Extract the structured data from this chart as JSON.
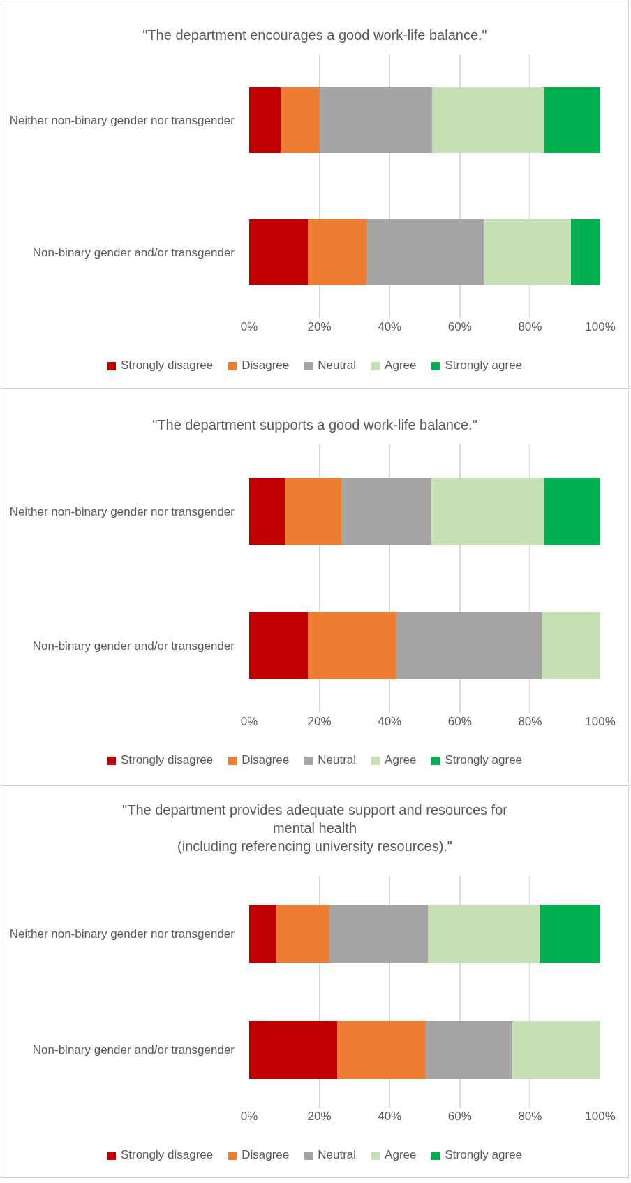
{
  "chart_data": [
    {
      "type": "bar",
      "orientation": "horizontal",
      "stacked": true,
      "title": "\"The department encourages a good work-life balance.\"",
      "categories": [
        "Neither non-binary gender nor transgender",
        "Non-binary gender and/or transgender"
      ],
      "series": [
        {
          "name": "Strongly disagree",
          "color": "#c00000",
          "values": [
            9,
            16.7
          ]
        },
        {
          "name": "Disagree",
          "color": "#ed7d31",
          "values": [
            11,
            16.7
          ]
        },
        {
          "name": "Neutral",
          "color": "#a5a5a5",
          "values": [
            32,
            33.3
          ]
        },
        {
          "name": "Agree",
          "color": "#c5e0b4",
          "values": [
            32,
            25
          ]
        },
        {
          "name": "Strongly agree",
          "color": "#00b050",
          "values": [
            16,
            8.3
          ]
        }
      ],
      "xlim": [
        0,
        100
      ],
      "xticks": [
        {
          "value": 0,
          "label": "0%"
        },
        {
          "value": 20,
          "label": "20%"
        },
        {
          "value": 40,
          "label": "40%"
        },
        {
          "value": 60,
          "label": "60%"
        },
        {
          "value": 80,
          "label": "80%"
        },
        {
          "value": 100,
          "label": "100%"
        }
      ],
      "grid": "x",
      "legend": "bottom"
    },
    {
      "type": "bar",
      "orientation": "horizontal",
      "stacked": true,
      "title": "\"The department supports a good work-life balance.\"",
      "categories": [
        "Neither non-binary gender nor transgender",
        "Non-binary gender and/or transgender"
      ],
      "series": [
        {
          "name": "Strongly disagree",
          "color": "#c00000",
          "values": [
            10.2,
            16.7
          ]
        },
        {
          "name": "Disagree",
          "color": "#ed7d31",
          "values": [
            16,
            25
          ]
        },
        {
          "name": "Neutral",
          "color": "#a5a5a5",
          "values": [
            25.7,
            41.6
          ]
        },
        {
          "name": "Agree",
          "color": "#c5e0b4",
          "values": [
            32.1,
            16.7
          ]
        },
        {
          "name": "Strongly agree",
          "color": "#00b050",
          "values": [
            16,
            0
          ]
        }
      ],
      "xlim": [
        0,
        100
      ],
      "xticks": [
        {
          "value": 0,
          "label": "0%"
        },
        {
          "value": 20,
          "label": "20%"
        },
        {
          "value": 40,
          "label": "40%"
        },
        {
          "value": 60,
          "label": "60%"
        },
        {
          "value": 80,
          "label": "80%"
        },
        {
          "value": 100,
          "label": "100%"
        }
      ],
      "grid": "x",
      "legend": "bottom"
    },
    {
      "type": "bar",
      "orientation": "horizontal",
      "stacked": true,
      "title": "\"The department provides adequate support and resources for\nmental health\n(including referencing university resources).\"",
      "categories": [
        "Neither non-binary gender nor transgender",
        "Non-binary gender and/or transgender"
      ],
      "series": [
        {
          "name": "Strongly disagree",
          "color": "#c00000",
          "values": [
            7.8,
            25
          ]
        },
        {
          "name": "Disagree",
          "color": "#ed7d31",
          "values": [
            14.8,
            25
          ]
        },
        {
          "name": "Neutral",
          "color": "#a5a5a5",
          "values": [
            28.3,
            25
          ]
        },
        {
          "name": "Agree",
          "color": "#c5e0b4",
          "values": [
            31.8,
            25
          ]
        },
        {
          "name": "Strongly agree",
          "color": "#00b050",
          "values": [
            17.3,
            0
          ]
        }
      ],
      "xlim": [
        0,
        100
      ],
      "xticks": [
        {
          "value": 0,
          "label": "0%"
        },
        {
          "value": 20,
          "label": "20%"
        },
        {
          "value": 40,
          "label": "40%"
        },
        {
          "value": 60,
          "label": "60%"
        },
        {
          "value": 80,
          "label": "80%"
        },
        {
          "value": 100,
          "label": "100%"
        }
      ],
      "grid": "x",
      "legend": "bottom"
    }
  ]
}
